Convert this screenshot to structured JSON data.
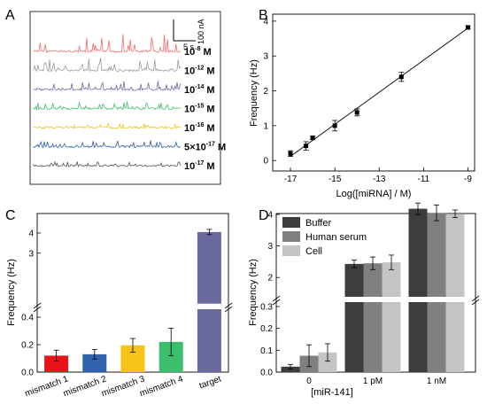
{
  "chart_data": [
    {
      "panel": "A",
      "type": "line",
      "scalebar": {
        "current": "100 nA",
        "time": "5 s"
      },
      "series": [
        {
          "name": "10-8 M",
          "base": "10",
          "exp": "-8",
          "unit": "M",
          "color": "#f26b6b"
        },
        {
          "name": "10-12 M",
          "base": "10",
          "exp": "-12",
          "unit": "M",
          "color": "#9a9a9a"
        },
        {
          "name": "10-14 M",
          "base": "10",
          "exp": "-14",
          "unit": "M",
          "color": "#6e69a6"
        },
        {
          "name": "10-15 M",
          "base": "10",
          "exp": "-15",
          "unit": "M",
          "color": "#3fbf6e"
        },
        {
          "name": "10-16 M",
          "base": "10",
          "exp": "-16",
          "unit": "M",
          "color": "#f2c21a"
        },
        {
          "name": "5×10-17 M",
          "base": "5×10",
          "exp": "-17",
          "unit": "M",
          "color": "#2c5ea2"
        },
        {
          "name": "10-17 M",
          "base": "10",
          "exp": "-17",
          "unit": "M",
          "color": "#555555"
        }
      ]
    },
    {
      "panel": "B",
      "type": "scatter",
      "xlabel": "Log([miRNA] / M)",
      "ylabel": "Frequency (Hz)",
      "xlim": [
        -17.8,
        -8.7
      ],
      "ylim": [
        -0.3,
        4.2
      ],
      "xticks": [
        -17,
        -15,
        -13,
        -11,
        -9
      ],
      "yticks": [
        0,
        1,
        2,
        3,
        4
      ],
      "points": [
        {
          "x": -17,
          "y": 0.2,
          "err": 0.08
        },
        {
          "x": -16.3,
          "y": 0.42,
          "err": 0.12
        },
        {
          "x": -16,
          "y": 0.65,
          "err": 0.05
        },
        {
          "x": -15,
          "y": 1.0,
          "err": 0.15
        },
        {
          "x": -14,
          "y": 1.38,
          "err": 0.1
        },
        {
          "x": -12,
          "y": 2.4,
          "err": 0.13
        },
        {
          "x": -9,
          "y": 3.82,
          "err": 0.05
        }
      ],
      "fit": {
        "x": [
          -17,
          -9
        ],
        "y": [
          0.12,
          3.8
        ]
      }
    },
    {
      "panel": "C",
      "type": "bar",
      "ylabel": "Frequency (Hz)",
      "categories": [
        "mismatch 1",
        "mismatch 2",
        "mismatch 3",
        "mismatch 4",
        "target"
      ],
      "values": [
        0.12,
        0.13,
        0.195,
        0.22,
        4.05
      ],
      "errors": [
        0.04,
        0.035,
        0.05,
        0.1,
        0.13
      ],
      "colors": [
        "#e8141c",
        "#2f63ad",
        "#f8c318",
        "#3bbf6c",
        "#6b6a9e"
      ],
      "yticks_lower": [
        "0.0",
        "0.2",
        "0.4"
      ],
      "yticks_upper": [
        "3",
        "4"
      ],
      "axis_break": true
    },
    {
      "panel": "D",
      "type": "bar",
      "ylabel": "Frequency (Hz)",
      "xlabel": "[miR-141]",
      "categories": [
        "0",
        "1 pM",
        "1 nM"
      ],
      "series": [
        {
          "name": "Buffer",
          "values": [
            0.025,
            2.43,
            4.18
          ],
          "errors": [
            0.01,
            0.12,
            0.18
          ],
          "color": "#3d3d3d"
        },
        {
          "name": "Human serum",
          "values": [
            0.075,
            2.45,
            4.05
          ],
          "errors": [
            0.05,
            0.2,
            0.25
          ],
          "color": "#808080"
        },
        {
          "name": "Cell",
          "values": [
            0.09,
            2.48,
            4.02
          ],
          "errors": [
            0.04,
            0.23,
            0.12
          ],
          "color": "#c4c4c4"
        }
      ],
      "yticks_lower": [
        "0.0",
        "0.1",
        "0.2",
        "0.3"
      ],
      "yticks_upper": [
        "2",
        "3",
        "4"
      ],
      "axis_break": true
    }
  ]
}
